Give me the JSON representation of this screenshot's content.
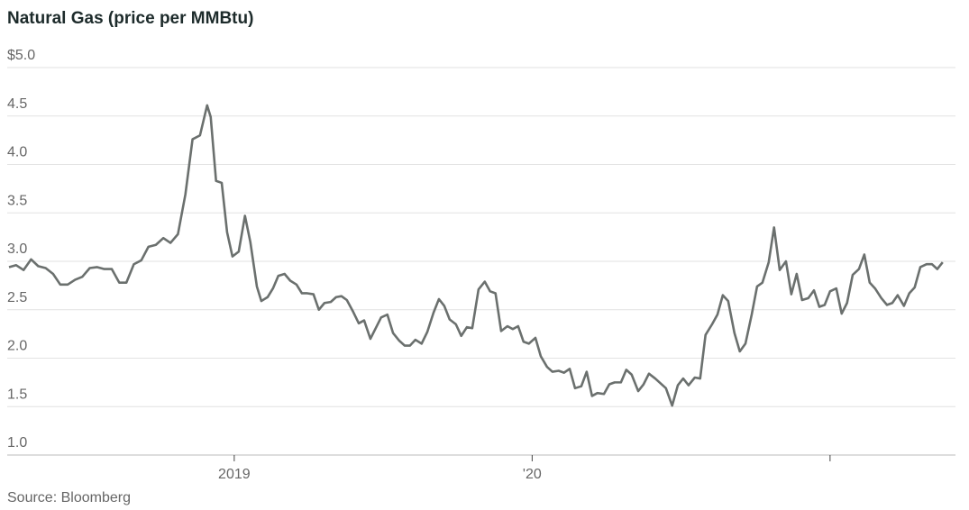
{
  "chart_data": {
    "type": "line",
    "title": "Natural Gas (price per MMBtu)",
    "source": "Source: Bloomberg",
    "color": "#6b706e",
    "grid": true,
    "xlim": [
      2018.244,
      2021.421
    ],
    "xticks": [
      2019,
      {
        "value": 2020,
        "label": "'20"
      },
      {
        "value": 2021,
        "label": null
      }
    ],
    "ylim": [
      1,
      5
    ],
    "yticks": [
      {
        "value": 1,
        "label": "1.0"
      },
      1.5,
      {
        "value": 2,
        "label": "2.0"
      },
      2.5,
      {
        "value": 3,
        "label": "3.0"
      },
      3.5,
      {
        "value": 4,
        "label": "4.0"
      },
      4.5,
      {
        "value": 5,
        "label": "$5.0"
      }
    ],
    "x": [
      2018.244,
      2018.268,
      2018.293,
      2018.318,
      2018.342,
      2018.367,
      2018.392,
      2018.416,
      2018.441,
      2018.466,
      2018.49,
      2018.515,
      2018.54,
      2018.564,
      2018.589,
      2018.614,
      2018.638,
      2018.663,
      2018.688,
      2018.712,
      2018.737,
      2018.762,
      2018.786,
      2018.811,
      2018.836,
      2018.86,
      2018.885,
      2018.909,
      2018.921,
      2018.939,
      2018.958,
      2018.976,
      2018.994,
      2019.015,
      2019.036,
      2019.054,
      2019.076,
      2019.091,
      2019.112,
      2019.13,
      2019.148,
      2019.169,
      2019.188,
      2019.209,
      2019.227,
      2019.245,
      2019.266,
      2019.284,
      2019.303,
      2019.324,
      2019.342,
      2019.36,
      2019.378,
      2019.399,
      2019.418,
      2019.436,
      2019.457,
      2019.475,
      2019.493,
      2019.514,
      2019.533,
      2019.554,
      2019.572,
      2019.59,
      2019.608,
      2019.629,
      2019.648,
      2019.669,
      2019.687,
      2019.705,
      2019.723,
      2019.744,
      2019.762,
      2019.781,
      2019.799,
      2019.82,
      2019.841,
      2019.859,
      2019.877,
      2019.896,
      2019.917,
      2019.935,
      2019.953,
      2019.971,
      2019.989,
      2020.011,
      2020.029,
      2020.05,
      2020.068,
      2020.089,
      2020.107,
      2020.126,
      2020.144,
      2020.165,
      2020.183,
      2020.201,
      2020.219,
      2020.241,
      2020.259,
      2020.277,
      2020.298,
      2020.316,
      2020.334,
      2020.356,
      2020.374,
      2020.392,
      2020.413,
      2020.431,
      2020.449,
      2020.47,
      2020.489,
      2020.507,
      2020.525,
      2020.546,
      2020.564,
      2020.582,
      2020.604,
      2020.622,
      2020.64,
      2020.658,
      2020.679,
      2020.697,
      2020.716,
      2020.737,
      2020.755,
      2020.773,
      2020.794,
      2020.812,
      2020.831,
      2020.852,
      2020.87,
      2020.888,
      2020.906,
      2020.927,
      2020.946,
      2020.964,
      2020.982,
      2021.0,
      2021.021,
      2021.039,
      2021.057,
      2021.076,
      2021.097,
      2021.115,
      2021.133,
      2021.151,
      2021.172,
      2021.191,
      2021.209,
      2021.227,
      2021.248,
      2021.266,
      2021.284,
      2021.303,
      2021.324,
      2021.342,
      2021.36,
      2021.378
    ],
    "values": [
      2.94,
      2.96,
      2.91,
      3.02,
      2.95,
      2.93,
      2.87,
      2.76,
      2.76,
      2.81,
      2.84,
      2.93,
      2.94,
      2.92,
      2.92,
      2.78,
      2.78,
      2.97,
      3.01,
      3.15,
      3.17,
      3.24,
      3.19,
      3.28,
      3.69,
      4.26,
      4.3,
      4.61,
      4.49,
      3.83,
      3.81,
      3.3,
      3.05,
      3.1,
      3.47,
      3.2,
      2.74,
      2.59,
      2.63,
      2.72,
      2.85,
      2.87,
      2.8,
      2.76,
      2.67,
      2.67,
      2.66,
      2.5,
      2.57,
      2.58,
      2.63,
      2.64,
      2.6,
      2.48,
      2.36,
      2.39,
      2.2,
      2.31,
      2.42,
      2.45,
      2.26,
      2.18,
      2.13,
      2.13,
      2.19,
      2.15,
      2.27,
      2.47,
      2.61,
      2.54,
      2.4,
      2.35,
      2.23,
      2.32,
      2.31,
      2.71,
      2.79,
      2.69,
      2.67,
      2.28,
      2.33,
      2.3,
      2.33,
      2.17,
      2.15,
      2.21,
      2.02,
      1.91,
      1.86,
      1.87,
      1.85,
      1.89,
      1.69,
      1.71,
      1.86,
      1.61,
      1.64,
      1.63,
      1.73,
      1.75,
      1.75,
      1.88,
      1.83,
      1.66,
      1.73,
      1.84,
      1.79,
      1.74,
      1.69,
      1.51,
      1.72,
      1.79,
      1.72,
      1.8,
      1.79,
      2.24,
      2.35,
      2.45,
      2.65,
      2.59,
      2.26,
      2.07,
      2.15,
      2.45,
      2.74,
      2.78,
      2.99,
      3.35,
      2.91,
      3.0,
      2.66,
      2.87,
      2.6,
      2.62,
      2.7,
      2.53,
      2.55,
      2.69,
      2.72,
      2.46,
      2.57,
      2.86,
      2.92,
      3.07,
      2.78,
      2.72,
      2.62,
      2.55,
      2.57,
      2.65,
      2.54,
      2.67,
      2.73,
      2.94,
      2.97,
      2.97,
      2.92,
      2.99
    ]
  }
}
